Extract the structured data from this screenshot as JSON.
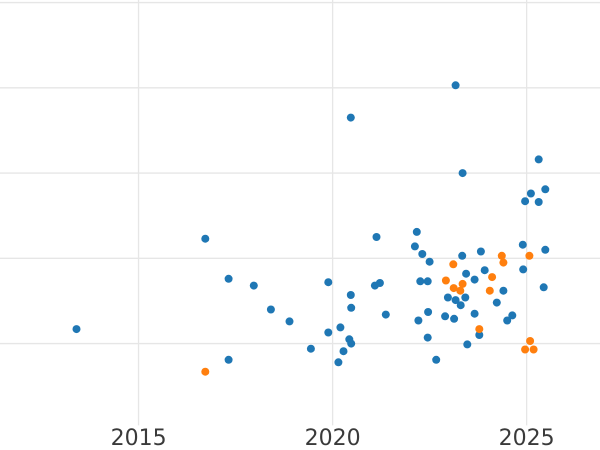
{
  "figure": {
    "background_color": "#ffffff",
    "grid_color": "#e6e6e6",
    "tick_label_color": "#3a3a3a",
    "title": ""
  },
  "chart_data": {
    "type": "scatter",
    "title": "",
    "xlabel": "",
    "ylabel": "",
    "grid": true,
    "legend": false,
    "marker_size_px": 8,
    "x_axis": {
      "range": [
        2011.43,
        2026.89
      ],
      "ticks": [
        2015,
        2020,
        2025
      ],
      "tick_labels": [
        "2015",
        "2020",
        "2025"
      ],
      "tick_labels_visible": true
    },
    "y_axis": {
      "range": [
        0.04,
        5.03
      ],
      "ticks": [
        1,
        2,
        3,
        4,
        5
      ],
      "tick_labels": [
        "",
        "",
        "",
        "",
        ""
      ],
      "tick_labels_visible": false
    },
    "series": [
      {
        "name": "blue",
        "color": "#1f77b4",
        "points": [
          [
            2023.17,
            4.03
          ],
          [
            2020.47,
            3.65
          ],
          [
            2025.31,
            3.16
          ],
          [
            2023.35,
            3.0
          ],
          [
            2025.48,
            2.81
          ],
          [
            2025.11,
            2.76
          ],
          [
            2024.96,
            2.67
          ],
          [
            2025.31,
            2.66
          ],
          [
            2016.72,
            2.23
          ],
          [
            2017.32,
            1.76
          ],
          [
            2017.97,
            1.68
          ],
          [
            2018.41,
            1.4
          ],
          [
            2018.89,
            1.26
          ],
          [
            2013.4,
            1.17
          ],
          [
            2017.32,
            0.81
          ],
          [
            2022.17,
            2.31
          ],
          [
            2021.13,
            2.25
          ],
          [
            2022.12,
            2.14
          ],
          [
            2022.31,
            2.05
          ],
          [
            2022.5,
            1.96
          ],
          [
            2019.89,
            1.72
          ],
          [
            2021.09,
            1.68
          ],
          [
            2021.22,
            1.71
          ],
          [
            2020.47,
            1.57
          ],
          [
            2020.48,
            1.42
          ],
          [
            2023.34,
            2.03
          ],
          [
            2023.82,
            2.08
          ],
          [
            2024.9,
            2.16
          ],
          [
            2025.48,
            2.1
          ],
          [
            2023.44,
            1.82
          ],
          [
            2023.92,
            1.86
          ],
          [
            2023.66,
            1.75
          ],
          [
            2022.26,
            1.73
          ],
          [
            2022.45,
            1.73
          ],
          [
            2024.91,
            1.87
          ],
          [
            2025.44,
            1.66
          ],
          [
            2024.4,
            1.62
          ],
          [
            2024.23,
            1.48
          ],
          [
            2022.97,
            1.54
          ],
          [
            2023.17,
            1.51
          ],
          [
            2023.42,
            1.54
          ],
          [
            2023.3,
            1.45
          ],
          [
            2021.37,
            1.34
          ],
          [
            2022.21,
            1.27
          ],
          [
            2022.46,
            1.37
          ],
          [
            2022.9,
            1.32
          ],
          [
            2023.13,
            1.29
          ],
          [
            2023.66,
            1.35
          ],
          [
            2024.63,
            1.33
          ],
          [
            2024.5,
            1.27
          ],
          [
            2019.89,
            1.13
          ],
          [
            2020.2,
            1.19
          ],
          [
            2019.44,
            0.94
          ],
          [
            2020.43,
            1.05
          ],
          [
            2020.48,
            1.0
          ],
          [
            2020.28,
            0.91
          ],
          [
            2020.15,
            0.78
          ],
          [
            2022.45,
            1.07
          ],
          [
            2022.67,
            0.81
          ],
          [
            2023.47,
            0.99
          ],
          [
            2023.78,
            1.1
          ]
        ]
      },
      {
        "name": "orange",
        "color": "#ff7f0e",
        "points": [
          [
            2016.72,
            0.67
          ],
          [
            2025.07,
            2.03
          ],
          [
            2023.11,
            1.93
          ],
          [
            2022.92,
            1.74
          ],
          [
            2023.12,
            1.65
          ],
          [
            2023.35,
            1.7
          ],
          [
            2023.29,
            1.62
          ],
          [
            2024.05,
            1.62
          ],
          [
            2024.36,
            2.03
          ],
          [
            2024.4,
            1.95
          ],
          [
            2024.11,
            1.78
          ],
          [
            2023.78,
            1.17
          ],
          [
            2025.09,
            1.03
          ],
          [
            2024.96,
            0.93
          ],
          [
            2025.18,
            0.93
          ]
        ]
      }
    ]
  }
}
